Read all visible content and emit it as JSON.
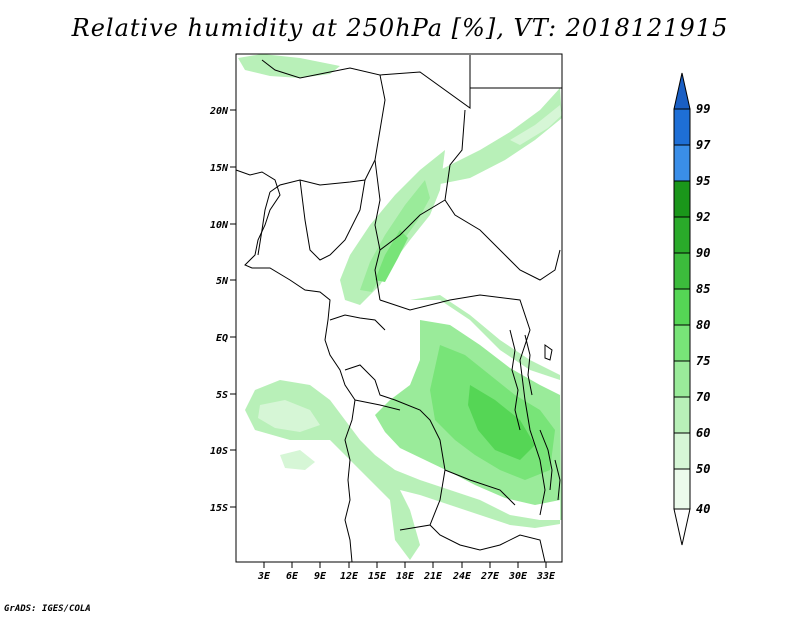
{
  "title": "Relative humidity at 250hPa [%], VT: 2018121915",
  "credit": "GrADS: IGES/COLA",
  "map": {
    "lat_ticks": [
      "20N",
      "15N",
      "10N",
      "5N",
      "EQ",
      "5S",
      "10S",
      "15S"
    ],
    "lon_ticks": [
      "3E",
      "6E",
      "9E",
      "12E",
      "15E",
      "18E",
      "21E",
      "24E",
      "27E",
      "30E",
      "33E"
    ]
  },
  "colorbar": {
    "levels": [
      "99",
      "97",
      "95",
      "92",
      "90",
      "85",
      "80",
      "75",
      "70",
      "60",
      "50",
      "40"
    ],
    "colors": {
      "c95_97": "#3a8ee8",
      "c97_99": "#1e6fd6",
      "top": "#1a5fc4",
      "c92_95": "#1a961a",
      "c90_92": "#2aaa2a",
      "c85_90": "#3cbc3c",
      "c80_85": "#55d655",
      "c75_80": "#78e478",
      "c70_75": "#9aeb9a",
      "c60_70": "#b8f0b8",
      "c50_60": "#d6f6d6",
      "c40_50": "#ecfbec",
      "bottom": "#ffffff"
    }
  }
}
